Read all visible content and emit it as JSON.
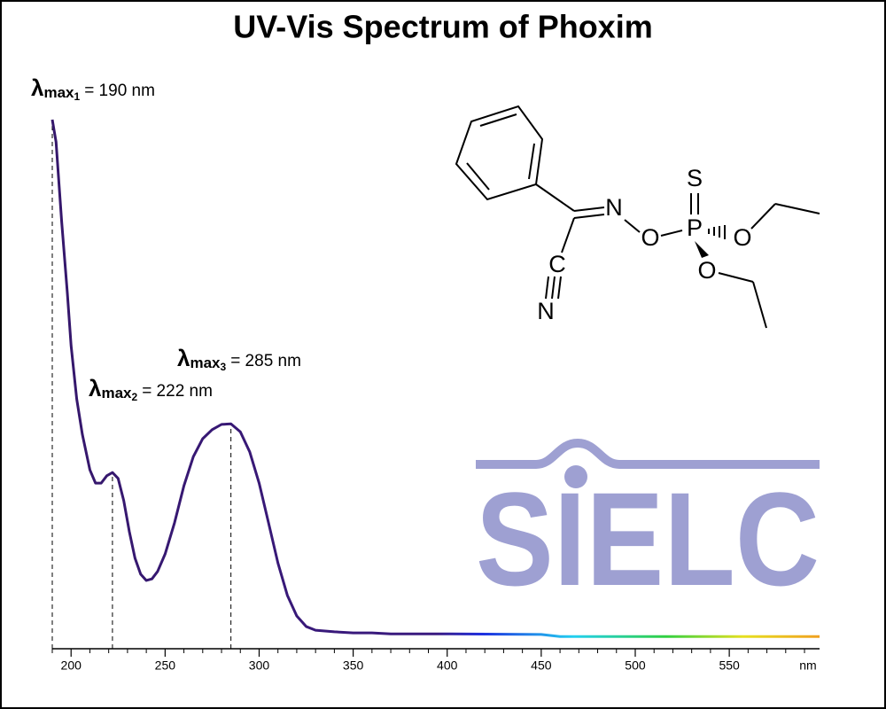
{
  "chart_data": {
    "type": "line",
    "title": "UV-Vis Spectrum of Phoxim",
    "x_label": "nm",
    "x": [
      190,
      192,
      195,
      198,
      200,
      203,
      206,
      210,
      213,
      216,
      219,
      222,
      225,
      228,
      231,
      234,
      237,
      240,
      243,
      246,
      250,
      255,
      260,
      265,
      270,
      275,
      280,
      285,
      290,
      295,
      300,
      305,
      310,
      315,
      320,
      325,
      330,
      340,
      350,
      360,
      370,
      400,
      450,
      460,
      500,
      550,
      598
    ],
    "values": [
      1.0,
      0.958,
      0.807,
      0.673,
      0.573,
      0.472,
      0.405,
      0.338,
      0.313,
      0.313,
      0.327,
      0.333,
      0.322,
      0.28,
      0.221,
      0.171,
      0.141,
      0.129,
      0.132,
      0.146,
      0.179,
      0.238,
      0.308,
      0.363,
      0.397,
      0.414,
      0.424,
      0.425,
      0.41,
      0.372,
      0.313,
      0.238,
      0.162,
      0.101,
      0.062,
      0.042,
      0.035,
      0.032,
      0.03,
      0.03,
      0.028,
      0.028,
      0.027,
      0.023,
      0.023,
      0.023,
      0.023
    ],
    "xlim": [
      190,
      598
    ],
    "ylim": [
      0,
      1
    ],
    "xticks": [
      200,
      250,
      300,
      350,
      400,
      450,
      500,
      550
    ],
    "xminor_ticks": [
      190,
      210,
      220,
      230,
      240,
      260,
      270,
      280,
      290,
      310,
      320,
      330,
      340,
      360,
      370,
      380,
      390,
      410,
      420,
      430,
      440,
      460,
      470,
      480,
      490,
      510,
      520,
      530,
      540,
      560,
      570,
      580,
      590
    ],
    "annotations": [
      {
        "symbol": "λ",
        "subscript": "max",
        "index": "1",
        "label": "= 190 nm",
        "x": 190,
        "y": 1.0
      },
      {
        "symbol": "λ",
        "subscript": "max",
        "index": "2",
        "label": "= 222 nm",
        "x": 222,
        "y": 0.333
      },
      {
        "symbol": "λ",
        "subscript": "max",
        "index": "3",
        "label": "= 285 nm",
        "x": 285,
        "y": 0.425
      }
    ],
    "structure_atoms": [
      "N",
      "O",
      "P",
      "S",
      "O",
      "O",
      "C",
      "N"
    ],
    "logo": "SIELC"
  }
}
